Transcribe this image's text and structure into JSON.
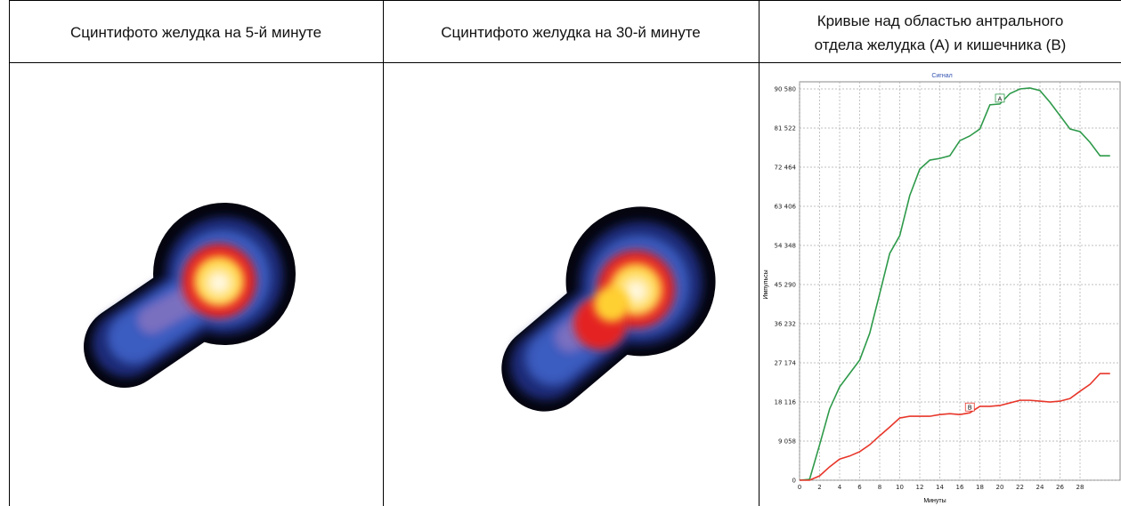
{
  "table": {
    "headers": [
      {
        "lines": [
          "Сцинтифото желудка на 5-й минуте"
        ]
      },
      {
        "lines": [
          "Сцинтифото желудка на 30-й минуте"
        ]
      },
      {
        "lines": [
          "Кривые над областью антрального",
          "отдела желудка (А) и кишечника (В)"
        ]
      }
    ],
    "chart": {
      "type": "line",
      "title": "Сигнал",
      "x_label": "Минуты",
      "y_label": "Импульсы",
      "x": [
        0,
        1,
        2,
        3,
        4,
        5,
        6,
        7,
        8,
        9,
        10,
        11,
        12,
        13,
        14,
        15,
        16,
        17,
        18,
        19,
        20,
        21,
        22,
        23,
        24,
        25,
        26,
        27,
        28,
        29,
        30,
        31
      ],
      "series": [
        {
          "name": "A",
          "color": "#2e9a4a",
          "values": [
            0,
            200,
            8200,
            16500,
            21600,
            24700,
            27800,
            34000,
            43200,
            52500,
            56600,
            65900,
            72000,
            74100,
            74500,
            75100,
            78600,
            79700,
            81300,
            86900,
            87100,
            89500,
            90580,
            90800,
            90200,
            87500,
            84400,
            81300,
            80700,
            78200,
            75100,
            75100
          ]
        },
        {
          "name": "B",
          "color": "#e8362a",
          "values": [
            0,
            0,
            1000,
            3100,
            4900,
            5600,
            6600,
            8200,
            10300,
            12300,
            14400,
            14800,
            14800,
            14800,
            15200,
            15400,
            15200,
            15600,
            17100,
            17100,
            17300,
            17900,
            18500,
            18500,
            18300,
            18100,
            18300,
            18900,
            20600,
            22200,
            24700,
            24700
          ]
        }
      ],
      "xlim": [
        0,
        32
      ],
      "ylim": [
        0,
        90580
      ],
      "xticks": [
        0,
        2,
        4,
        6,
        8,
        10,
        12,
        14,
        16,
        18,
        20,
        22,
        24,
        26,
        28
      ],
      "yticks": [
        0,
        {
          "value": 9058,
          "label": "9 058"
        },
        {
          "value": 18116,
          "label": "18 116"
        },
        {
          "value": 27174,
          "label": "27 174"
        },
        {
          "value": 36232,
          "label": "36 232"
        },
        {
          "value": 45290,
          "label": "45 290"
        },
        {
          "value": 54348,
          "label": "54 348"
        },
        {
          "value": 63406,
          "label": "63 406"
        },
        {
          "value": 72464,
          "label": "72 464"
        },
        {
          "value": 81522,
          "label": "81 522"
        },
        {
          "value": 90580,
          "label": "90 580"
        }
      ],
      "grid": true
    }
  }
}
